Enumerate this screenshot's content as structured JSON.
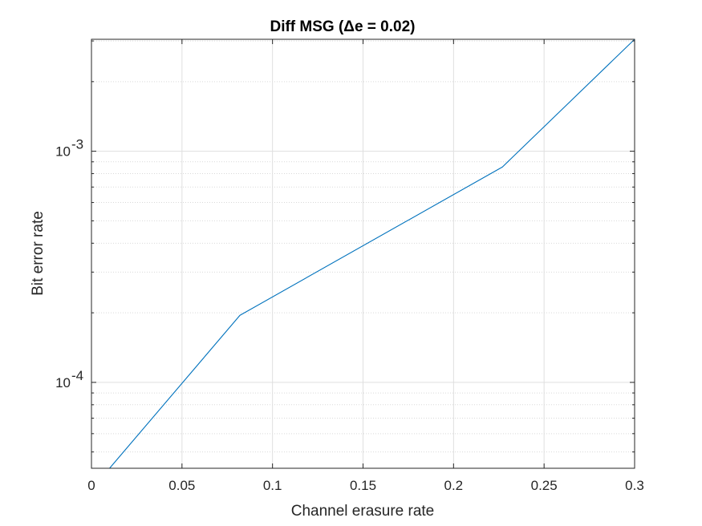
{
  "chart_data": {
    "type": "line",
    "title": "Diff MSG (Δe = 0.02)",
    "xlabel": "Channel erasure rate",
    "ylabel": "Bit error rate",
    "xlim": [
      0,
      0.3
    ],
    "ylim": [
      4.25e-05,
      0.00305
    ],
    "yscale": "log",
    "grid": true,
    "minor_grid": true,
    "x_ticks": [
      0,
      0.05,
      0.1,
      0.15,
      0.2,
      0.25,
      0.3
    ],
    "x_tick_labels": [
      "0",
      "0.05",
      "0.1",
      "0.15",
      "0.2",
      "0.25",
      "0.3"
    ],
    "y_ticks": [
      0.0001,
      0.001
    ],
    "y_tick_labels": [
      {
        "base": "10",
        "exp": "-4"
      },
      {
        "base": "10",
        "exp": "-3"
      }
    ],
    "series": [
      {
        "color": "#0072BD",
        "x": [
          0.01,
          0.082,
          0.227,
          0.3
        ],
        "y": [
          4.25e-05,
          0.000195,
          0.000855,
          0.00305
        ]
      }
    ]
  }
}
